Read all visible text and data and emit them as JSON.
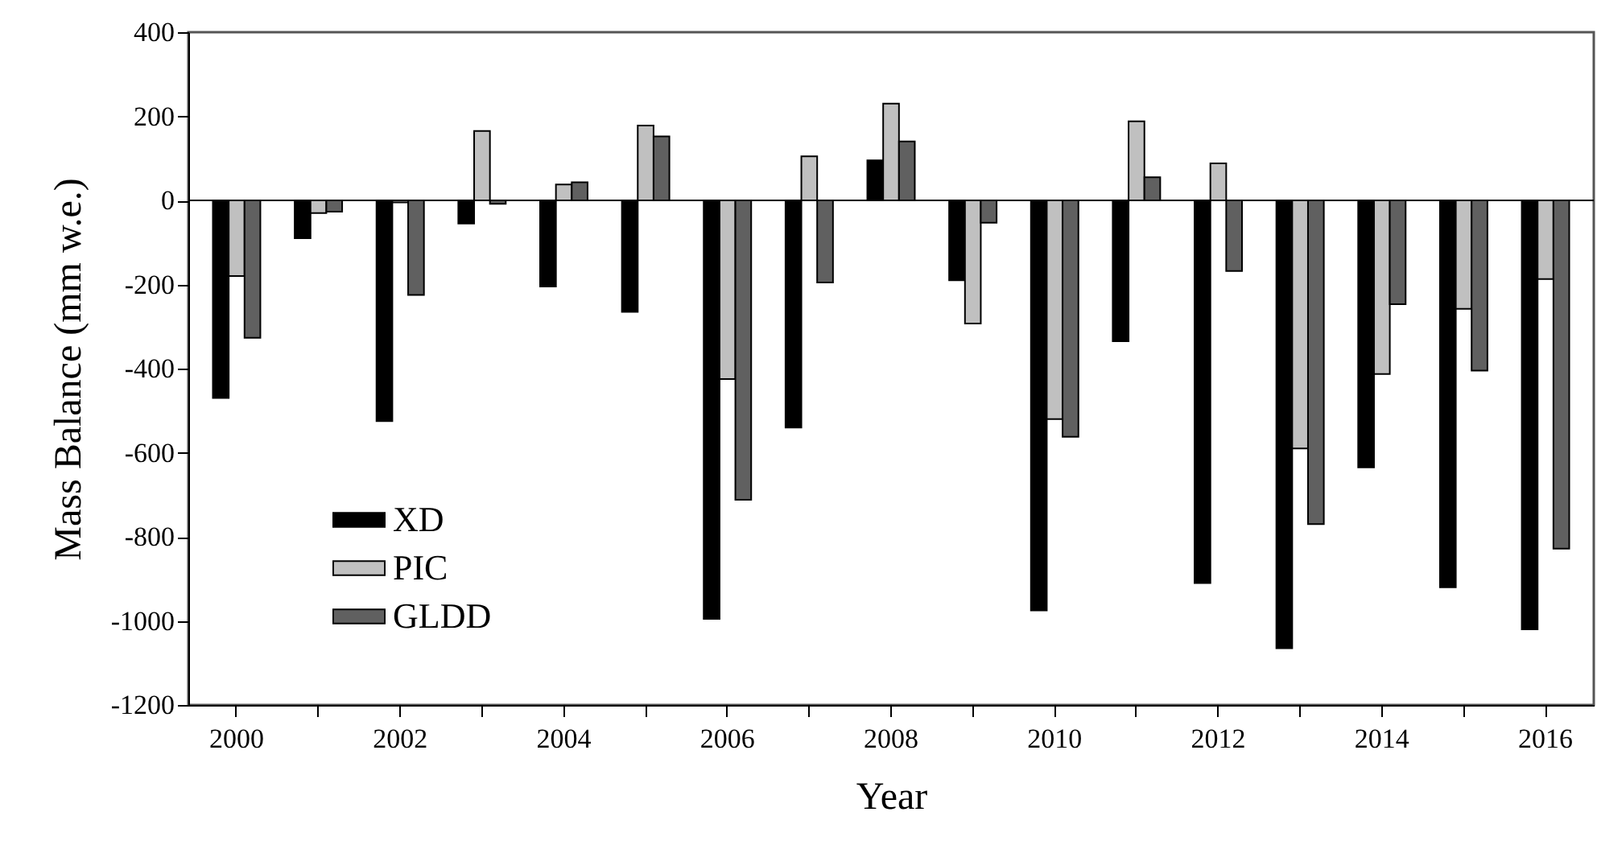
{
  "chart_data": {
    "type": "bar",
    "xlabel": "Year",
    "ylabel": "Mass Balance (mm w.e.)",
    "categories": [
      "2000",
      null,
      "2002",
      null,
      "2004",
      null,
      "2006",
      null,
      "2008",
      null,
      "2010",
      null,
      "2012",
      null,
      "2014",
      null,
      "2016"
    ],
    "series": [
      {
        "name": "XD",
        "color": "#000000",
        "values": [
          -470,
          -90,
          -525,
          -55,
          -205,
          -265,
          -995,
          -540,
          95,
          -190,
          -975,
          -335,
          -910,
          -1065,
          -635,
          -920,
          -1020
        ]
      },
      {
        "name": "PIC",
        "color": "#c0c0c0",
        "values": [
          -180,
          -30,
          -5,
          165,
          38,
          178,
          -425,
          105,
          230,
          -293,
          -520,
          188,
          88,
          -590,
          -413,
          -258,
          -187
        ]
      },
      {
        "name": "GLDD",
        "color": "#606060",
        "values": [
          -327,
          -27,
          -225,
          -8,
          43,
          152,
          -712,
          -195,
          140,
          -53,
          -562,
          55,
          -168,
          -770,
          -247,
          -405,
          -828
        ]
      }
    ],
    "ylim": [
      -1200,
      400
    ],
    "yticks": [
      -1200,
      -1000,
      -800,
      -600,
      -400,
      -200,
      0,
      200,
      400
    ],
    "ref_lines": [
      {
        "axis": "y",
        "value": 0,
        "color": "#000000"
      }
    ],
    "legend": "bottom left"
  }
}
